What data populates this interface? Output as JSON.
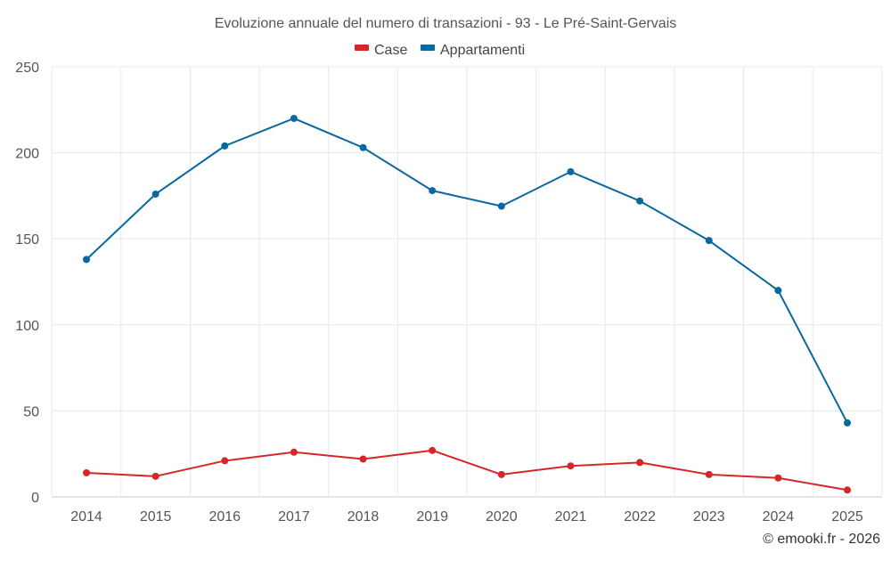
{
  "chart_data": {
    "type": "line",
    "title": "Evoluzione annuale del numero di transazioni - 93 - Le Pré-Saint-Gervais",
    "categories": [
      "2014",
      "2015",
      "2016",
      "2017",
      "2018",
      "2019",
      "2020",
      "2021",
      "2022",
      "2023",
      "2024",
      "2025"
    ],
    "series": [
      {
        "name": "Case",
        "color": "#d62728",
        "values": [
          14,
          12,
          21,
          26,
          22,
          27,
          13,
          18,
          20,
          13,
          11,
          4
        ]
      },
      {
        "name": "Appartamenti",
        "color": "#0868a0",
        "values": [
          138,
          176,
          204,
          220,
          203,
          178,
          169,
          189,
          172,
          149,
          120,
          43
        ]
      }
    ],
    "ylim": [
      0,
      250
    ],
    "yticks": [
      0,
      50,
      100,
      150,
      200,
      250
    ],
    "grid": true,
    "legend": "top-center",
    "xlabel": "",
    "ylabel": ""
  },
  "credit": "© emooki.fr - 2026"
}
